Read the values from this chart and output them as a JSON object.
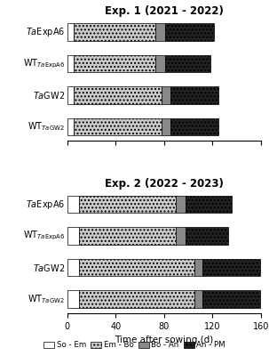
{
  "exp1": {
    "title": "Exp. 1 (2021 - 2022)",
    "categories": [
      "TaExpA6",
      "WT_TaExpA6",
      "TaGW2",
      "WT_TaGW2"
    ],
    "So_Em": [
      5,
      5,
      5,
      5
    ],
    "Em_Bo": [
      68,
      68,
      73,
      73
    ],
    "Bo_An": [
      8,
      8,
      7,
      7
    ],
    "An_PM": [
      40,
      37,
      40,
      40
    ]
  },
  "exp2": {
    "title": "Exp. 2 (2022 - 2023)",
    "categories": [
      "TaExpA6",
      "WT_TaExpA6",
      "TaGW2",
      "WT_TaGW2"
    ],
    "So_Em": [
      10,
      10,
      10,
      10
    ],
    "Em_Bo": [
      80,
      80,
      95,
      95
    ],
    "Bo_An": [
      8,
      8,
      7,
      7
    ],
    "An_PM": [
      38,
      35,
      47,
      47
    ]
  },
  "colors": {
    "So_Em": "#ffffff",
    "Em_Bo": "#cccccc",
    "Bo_An": "#888888",
    "An_PM": "#222222"
  },
  "hatch": {
    "So_Em": "",
    "Em_Bo": "....",
    "Bo_An": "",
    "An_PM": "...."
  },
  "xlim": [
    0,
    160
  ],
  "xticks": [
    0,
    40,
    80,
    120,
    160
  ],
  "xlabel": "Time after sowing (d)",
  "legend_labels": [
    "So - Em",
    "Em - Bo",
    "Bo - An",
    "An - PM"
  ],
  "bar_height": 0.55,
  "segments": [
    "So_Em",
    "Em_Bo",
    "Bo_An",
    "An_PM"
  ]
}
